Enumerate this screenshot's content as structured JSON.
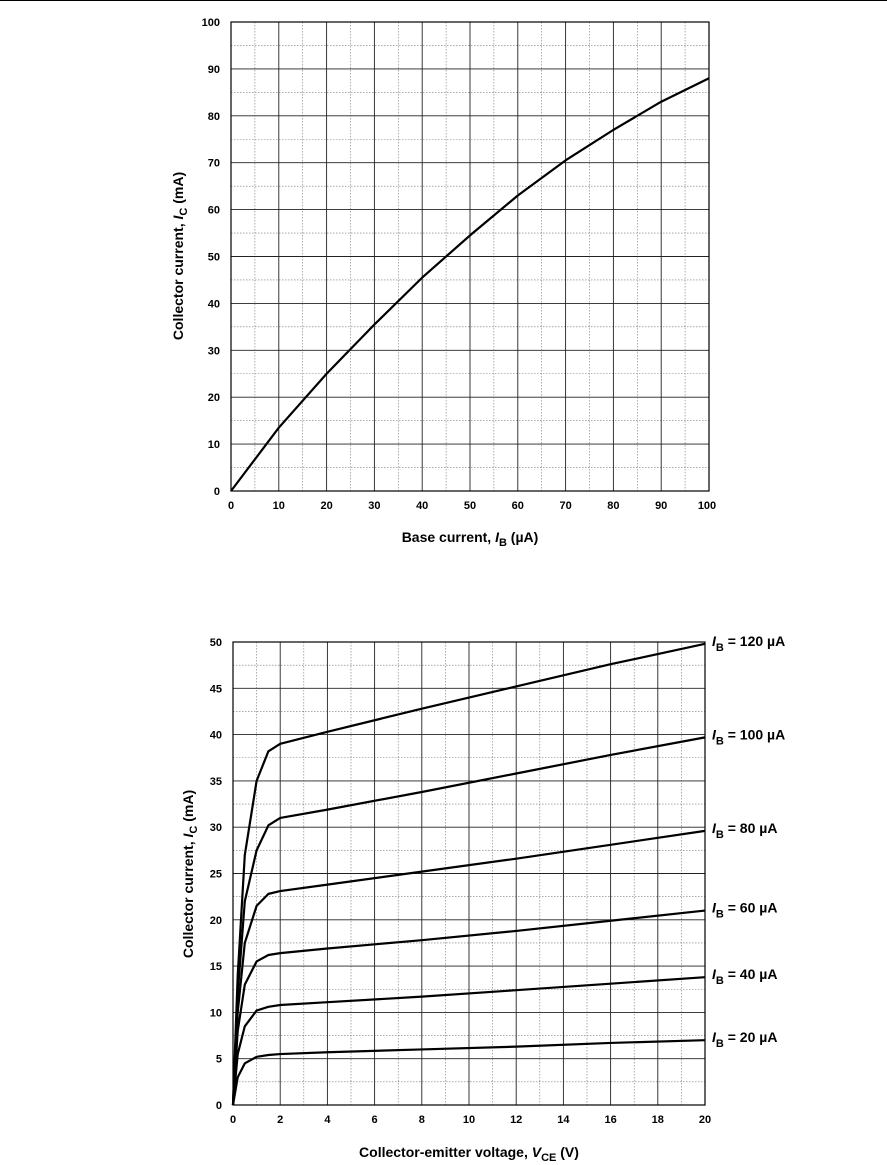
{
  "chart_data": [
    {
      "type": "line",
      "xlabel": {
        "prefix": "Base current, ",
        "symbol": "I",
        "subscript": "B",
        "suffix": " (µA)"
      },
      "ylabel": {
        "prefix": "Collector current, ",
        "symbol": "I",
        "subscript": "C",
        "suffix": " (mA)"
      },
      "xlim": [
        0,
        100
      ],
      "ylim": [
        0,
        100
      ],
      "x_ticks": [
        0,
        10,
        20,
        30,
        40,
        50,
        60,
        70,
        80,
        90,
        100
      ],
      "y_ticks": [
        0,
        10,
        20,
        30,
        40,
        50,
        60,
        70,
        80,
        90,
        100
      ],
      "grid": true,
      "series": [
        {
          "x": [
            0,
            10,
            20,
            30,
            40,
            50,
            60,
            70,
            80,
            90,
            100
          ],
          "y": [
            0,
            13.5,
            25,
            35.5,
            45.5,
            54.5,
            63,
            70.5,
            77,
            83,
            88
          ]
        }
      ]
    },
    {
      "type": "line",
      "xlabel": {
        "prefix": "Collector-emitter voltage, ",
        "symbol": "V",
        "subscript": "CE",
        "suffix": " (V)"
      },
      "ylabel": {
        "prefix": "Collector current, ",
        "symbol": "I",
        "subscript": "C",
        "suffix": " (mA)"
      },
      "xlim": [
        0,
        20
      ],
      "ylim": [
        0,
        50
      ],
      "x_ticks": [
        0,
        2,
        4,
        6,
        8,
        10,
        12,
        14,
        16,
        18,
        20
      ],
      "y_ticks": [
        0,
        5,
        10,
        15,
        20,
        25,
        30,
        35,
        40,
        45,
        50
      ],
      "grid": true,
      "series": [
        {
          "label": {
            "symbol": "I",
            "subscript": "B",
            "value": " = 120 µA"
          },
          "x": [
            0,
            0.2,
            0.5,
            1,
            1.5,
            2,
            4,
            8,
            12,
            16,
            20
          ],
          "y": [
            0,
            14,
            27,
            35,
            38.2,
            39,
            40.3,
            42.8,
            45.2,
            47.6,
            49.8
          ]
        },
        {
          "label": {
            "symbol": "I",
            "subscript": "B",
            "value": " = 100 µA"
          },
          "x": [
            0,
            0.2,
            0.5,
            1,
            1.5,
            2,
            4,
            8,
            12,
            16,
            20
          ],
          "y": [
            0,
            12,
            22,
            27.5,
            30.2,
            31,
            31.9,
            33.8,
            35.8,
            37.8,
            39.7
          ]
        },
        {
          "label": {
            "symbol": "I",
            "subscript": "B",
            "value": " = 80 µA"
          },
          "x": [
            0,
            0.2,
            0.5,
            1,
            1.5,
            2,
            4,
            8,
            12,
            16,
            20
          ],
          "y": [
            0,
            10,
            17.5,
            21.5,
            22.8,
            23.1,
            23.8,
            25.2,
            26.6,
            28.1,
            29.6
          ]
        },
        {
          "label": {
            "symbol": "I",
            "subscript": "B",
            "value": " = 60 µA"
          },
          "x": [
            0,
            0.2,
            0.5,
            1,
            1.5,
            2,
            4,
            8,
            12,
            16,
            20
          ],
          "y": [
            0,
            8,
            13,
            15.5,
            16.2,
            16.4,
            16.9,
            17.8,
            18.8,
            19.9,
            21
          ]
        },
        {
          "label": {
            "symbol": "I",
            "subscript": "B",
            "value": " = 40 µA"
          },
          "x": [
            0,
            0.2,
            0.5,
            1,
            1.5,
            2,
            4,
            8,
            12,
            16,
            20
          ],
          "y": [
            0,
            5.5,
            8.5,
            10.2,
            10.6,
            10.8,
            11.1,
            11.7,
            12.4,
            13.1,
            13.8
          ]
        },
        {
          "label": {
            "symbol": "I",
            "subscript": "B",
            "value": " = 20 µA"
          },
          "x": [
            0,
            0.2,
            0.5,
            1,
            1.5,
            2,
            4,
            8,
            12,
            16,
            20
          ],
          "y": [
            0,
            3,
            4.5,
            5.2,
            5.4,
            5.5,
            5.7,
            6,
            6.3,
            6.7,
            7
          ]
        }
      ]
    }
  ]
}
